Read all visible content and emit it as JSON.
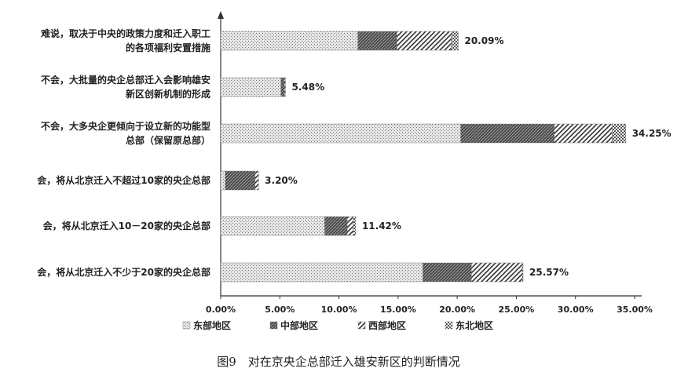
{
  "chart_data": {
    "type": "bar",
    "orientation": "horizontal",
    "stacked": true,
    "categories": [
      [
        "难说，取决于中央的政策力度和迁入职工",
        "的各项福利安置措施"
      ],
      [
        "不会，大批量的央企总部迁入会影响雄安",
        "新区创新机制的形成"
      ],
      [
        "不会，大多央企更倾向于设立新的功能型",
        "总部（保留原总部）"
      ],
      [
        "会，将从北京迁入不超过10家的央企总部"
      ],
      [
        "会，将从北京迁入10－20家的央企总部"
      ],
      [
        "会，将从北京迁入不少于20家的央企总部"
      ]
    ],
    "totals": [
      "20.09%",
      "5.48%",
      "34.25%",
      "3.20%",
      "11.42%",
      "25.57%"
    ],
    "series": [
      {
        "name": "东部地区",
        "values": [
          11.6,
          5.1,
          20.3,
          0.4,
          8.8,
          17.1
        ],
        "color": "#c8c8c8"
      },
      {
        "name": "中部地区",
        "values": [
          3.3,
          0.3,
          7.9,
          2.5,
          1.9,
          4.1
        ],
        "color": "#5a5a5a"
      },
      {
        "name": "西部地区",
        "values": [
          4.6,
          0.08,
          4.9,
          0.3,
          0.5,
          4.3
        ],
        "color": "#9a9a9a"
      },
      {
        "name": "东北地区",
        "values": [
          0.59,
          0.0,
          1.15,
          0.0,
          0.22,
          0.07
        ],
        "color": "#b4b4b4"
      }
    ],
    "xticks": [
      "0.00%",
      "5.00%",
      "10.00%",
      "15.00%",
      "20.00%",
      "25.00%",
      "30.00%",
      "35.00%"
    ],
    "xlim": [
      0,
      35
    ],
    "legend_position": "bottom",
    "grid": false
  },
  "caption": "图9　对在京央企总部迁入雄安新区的判断情况"
}
